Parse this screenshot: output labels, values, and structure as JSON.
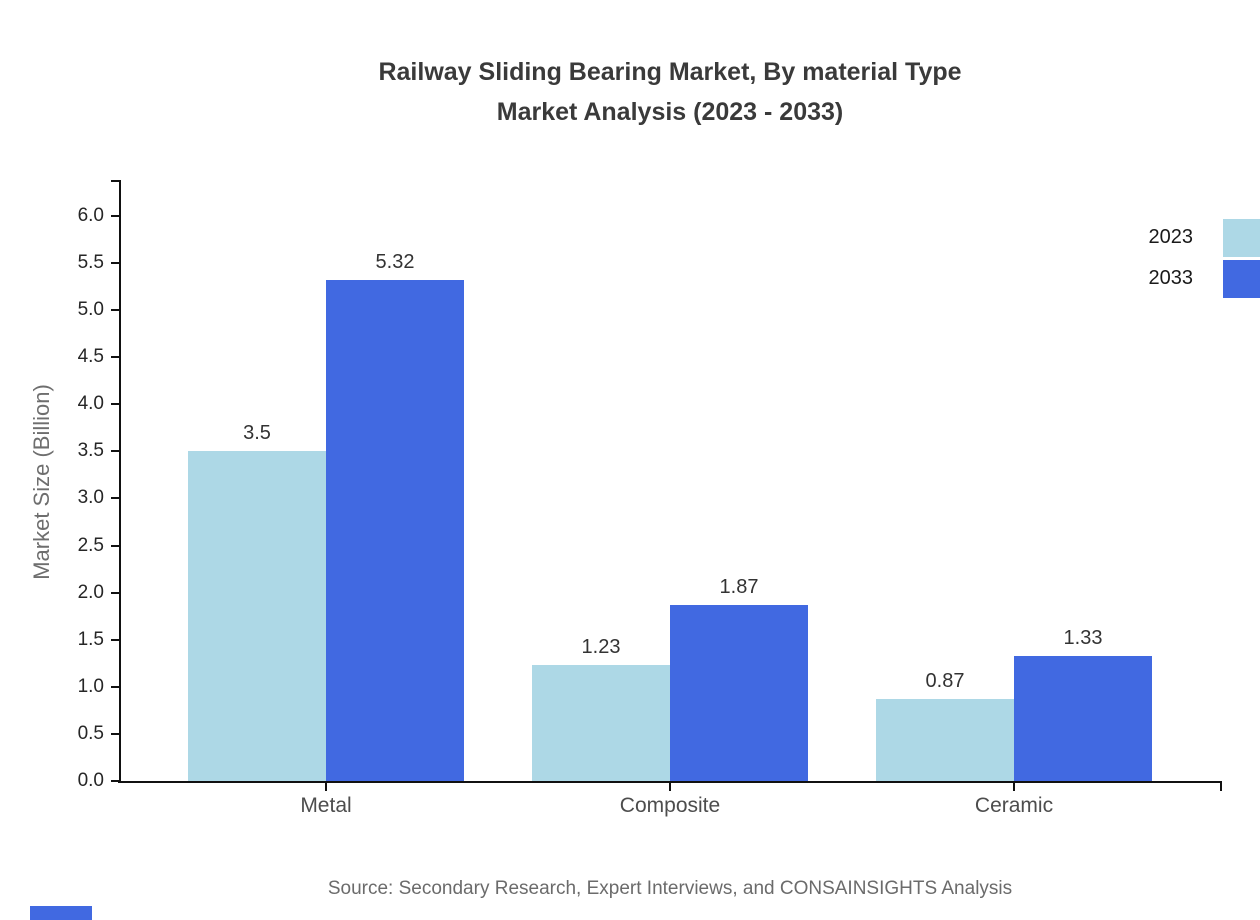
{
  "title": {
    "line1": "Railway Sliding Bearing Market, By material Type",
    "line2": "Market Analysis (2023 - 2033)"
  },
  "y_axis_label": "Market Size (Billion)",
  "source_note": "Source: Secondary Research, Expert Interviews, and CONSAINSIGHTS Analysis",
  "chart_data": {
    "type": "bar",
    "title": "Railway Sliding Bearing Market, By material Type Market Analysis (2023 - 2033)",
    "categories": [
      "Metal",
      "Composite",
      "Ceramic"
    ],
    "series": [
      {
        "name": "2023",
        "color": "#ADD8E6",
        "values": [
          3.5,
          1.23,
          0.87
        ],
        "labels": [
          "3.5",
          "1.23",
          "0.87"
        ]
      },
      {
        "name": "2033",
        "color": "#4169E1",
        "values": [
          5.32,
          1.87,
          1.33
        ],
        "labels": [
          "5.32",
          "1.87",
          "1.33"
        ]
      }
    ],
    "xlabel": "",
    "ylabel": "Market Size (Billion)",
    "ylim": [
      0,
      6.38
    ],
    "yticks": [
      0,
      0.5,
      1,
      1.5,
      2,
      2.5,
      3,
      3.5,
      4,
      4.5,
      5,
      5.5,
      6
    ],
    "ytick_labels": [
      "0.0",
      "0.5",
      "1.0",
      "1.5",
      "2.0",
      "2.5",
      "3.0",
      "3.5",
      "4.0",
      "4.5",
      "5.0",
      "5.5",
      "6.0"
    ],
    "grid": false,
    "legend_position": "upper right",
    "value_labels_shown": true
  },
  "colors": {
    "series_2023": "#ADD8E6",
    "series_2033": "#4169E1",
    "axis": "#111111",
    "title_text": "#3a3a3a",
    "brand_mark": "#4169E1"
  }
}
